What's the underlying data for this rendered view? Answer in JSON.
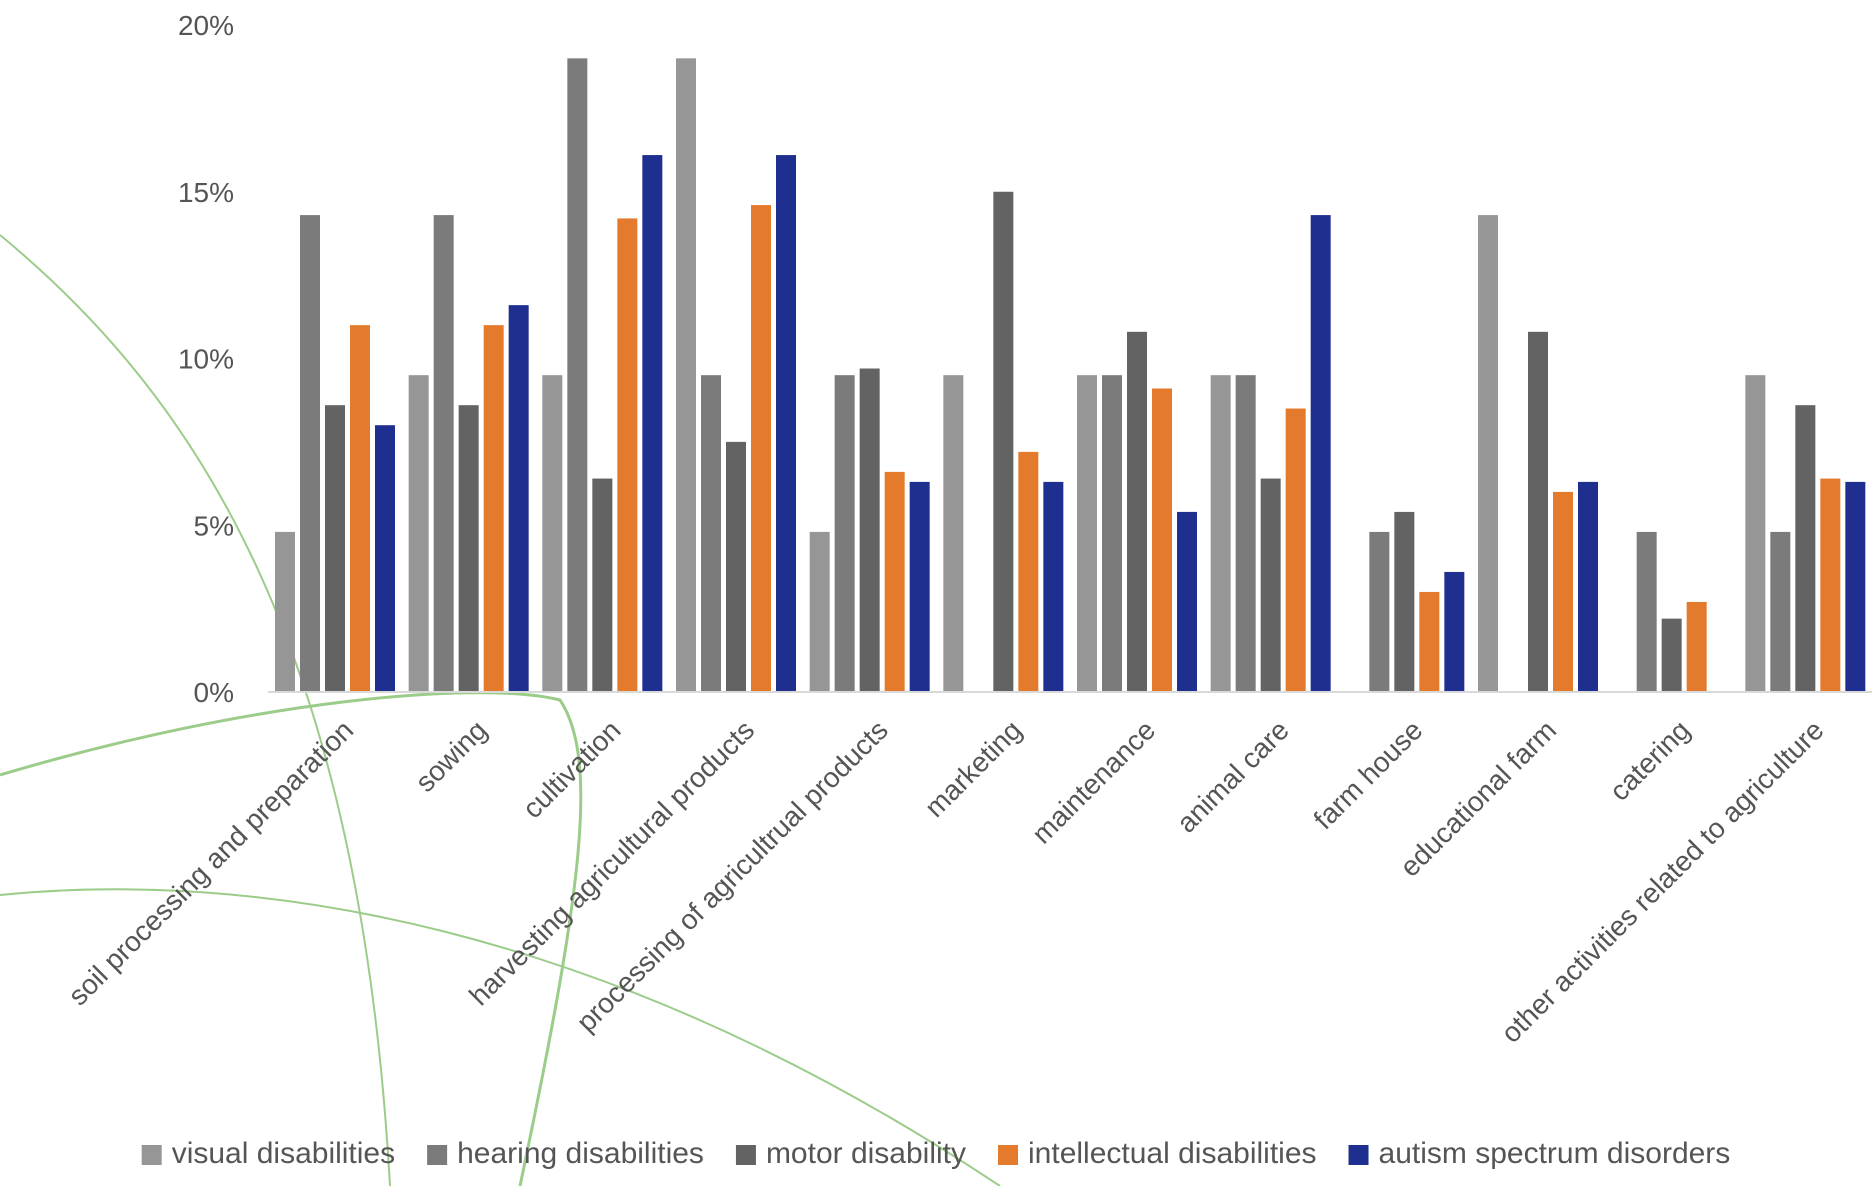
{
  "chart_data": {
    "type": "bar",
    "title": "",
    "xlabel": "",
    "ylabel": "",
    "ylim": [
      0,
      20
    ],
    "y_ticks": [
      "0%",
      "5%",
      "10%",
      "15%",
      "20%"
    ],
    "grid": false,
    "legend_position": "bottom",
    "categories": [
      "soil processing and preparation",
      "sowing",
      "cultivation",
      "harvesting agricultural products",
      "processing of agricultrual products",
      "marketing",
      "maintenance",
      "animal care",
      "farm house",
      "educational farm",
      "catering",
      "other activities related to agriculture"
    ],
    "series": [
      {
        "name": "visual disabilities",
        "color": "#969696",
        "values": [
          4.8,
          9.5,
          9.5,
          19.0,
          4.8,
          9.5,
          9.5,
          9.5,
          0,
          14.3,
          0,
          9.5
        ]
      },
      {
        "name": "hearing disabilities",
        "color": "#7b7b7b",
        "values": [
          14.3,
          14.3,
          19.0,
          9.5,
          9.5,
          0,
          9.5,
          9.5,
          4.8,
          0,
          4.8,
          4.8
        ]
      },
      {
        "name": "motor disability",
        "color": "#636363",
        "values": [
          8.6,
          8.6,
          6.4,
          7.5,
          9.7,
          15.0,
          10.8,
          6.4,
          5.4,
          10.8,
          2.2,
          8.6
        ]
      },
      {
        "name": "intellectual disabilities",
        "color": "#e47a2b",
        "values": [
          11.0,
          11.0,
          14.2,
          14.6,
          6.6,
          7.2,
          9.1,
          8.5,
          3.0,
          6.0,
          2.7,
          6.4
        ]
      },
      {
        "name": "autism spectrum disorders",
        "color": "#1f2f8f",
        "values": [
          8.0,
          11.6,
          16.1,
          16.1,
          6.3,
          6.3,
          5.4,
          14.3,
          3.6,
          6.3,
          0,
          6.3
        ]
      }
    ]
  },
  "decoration": {
    "arc_color": "#9ccc8a"
  }
}
